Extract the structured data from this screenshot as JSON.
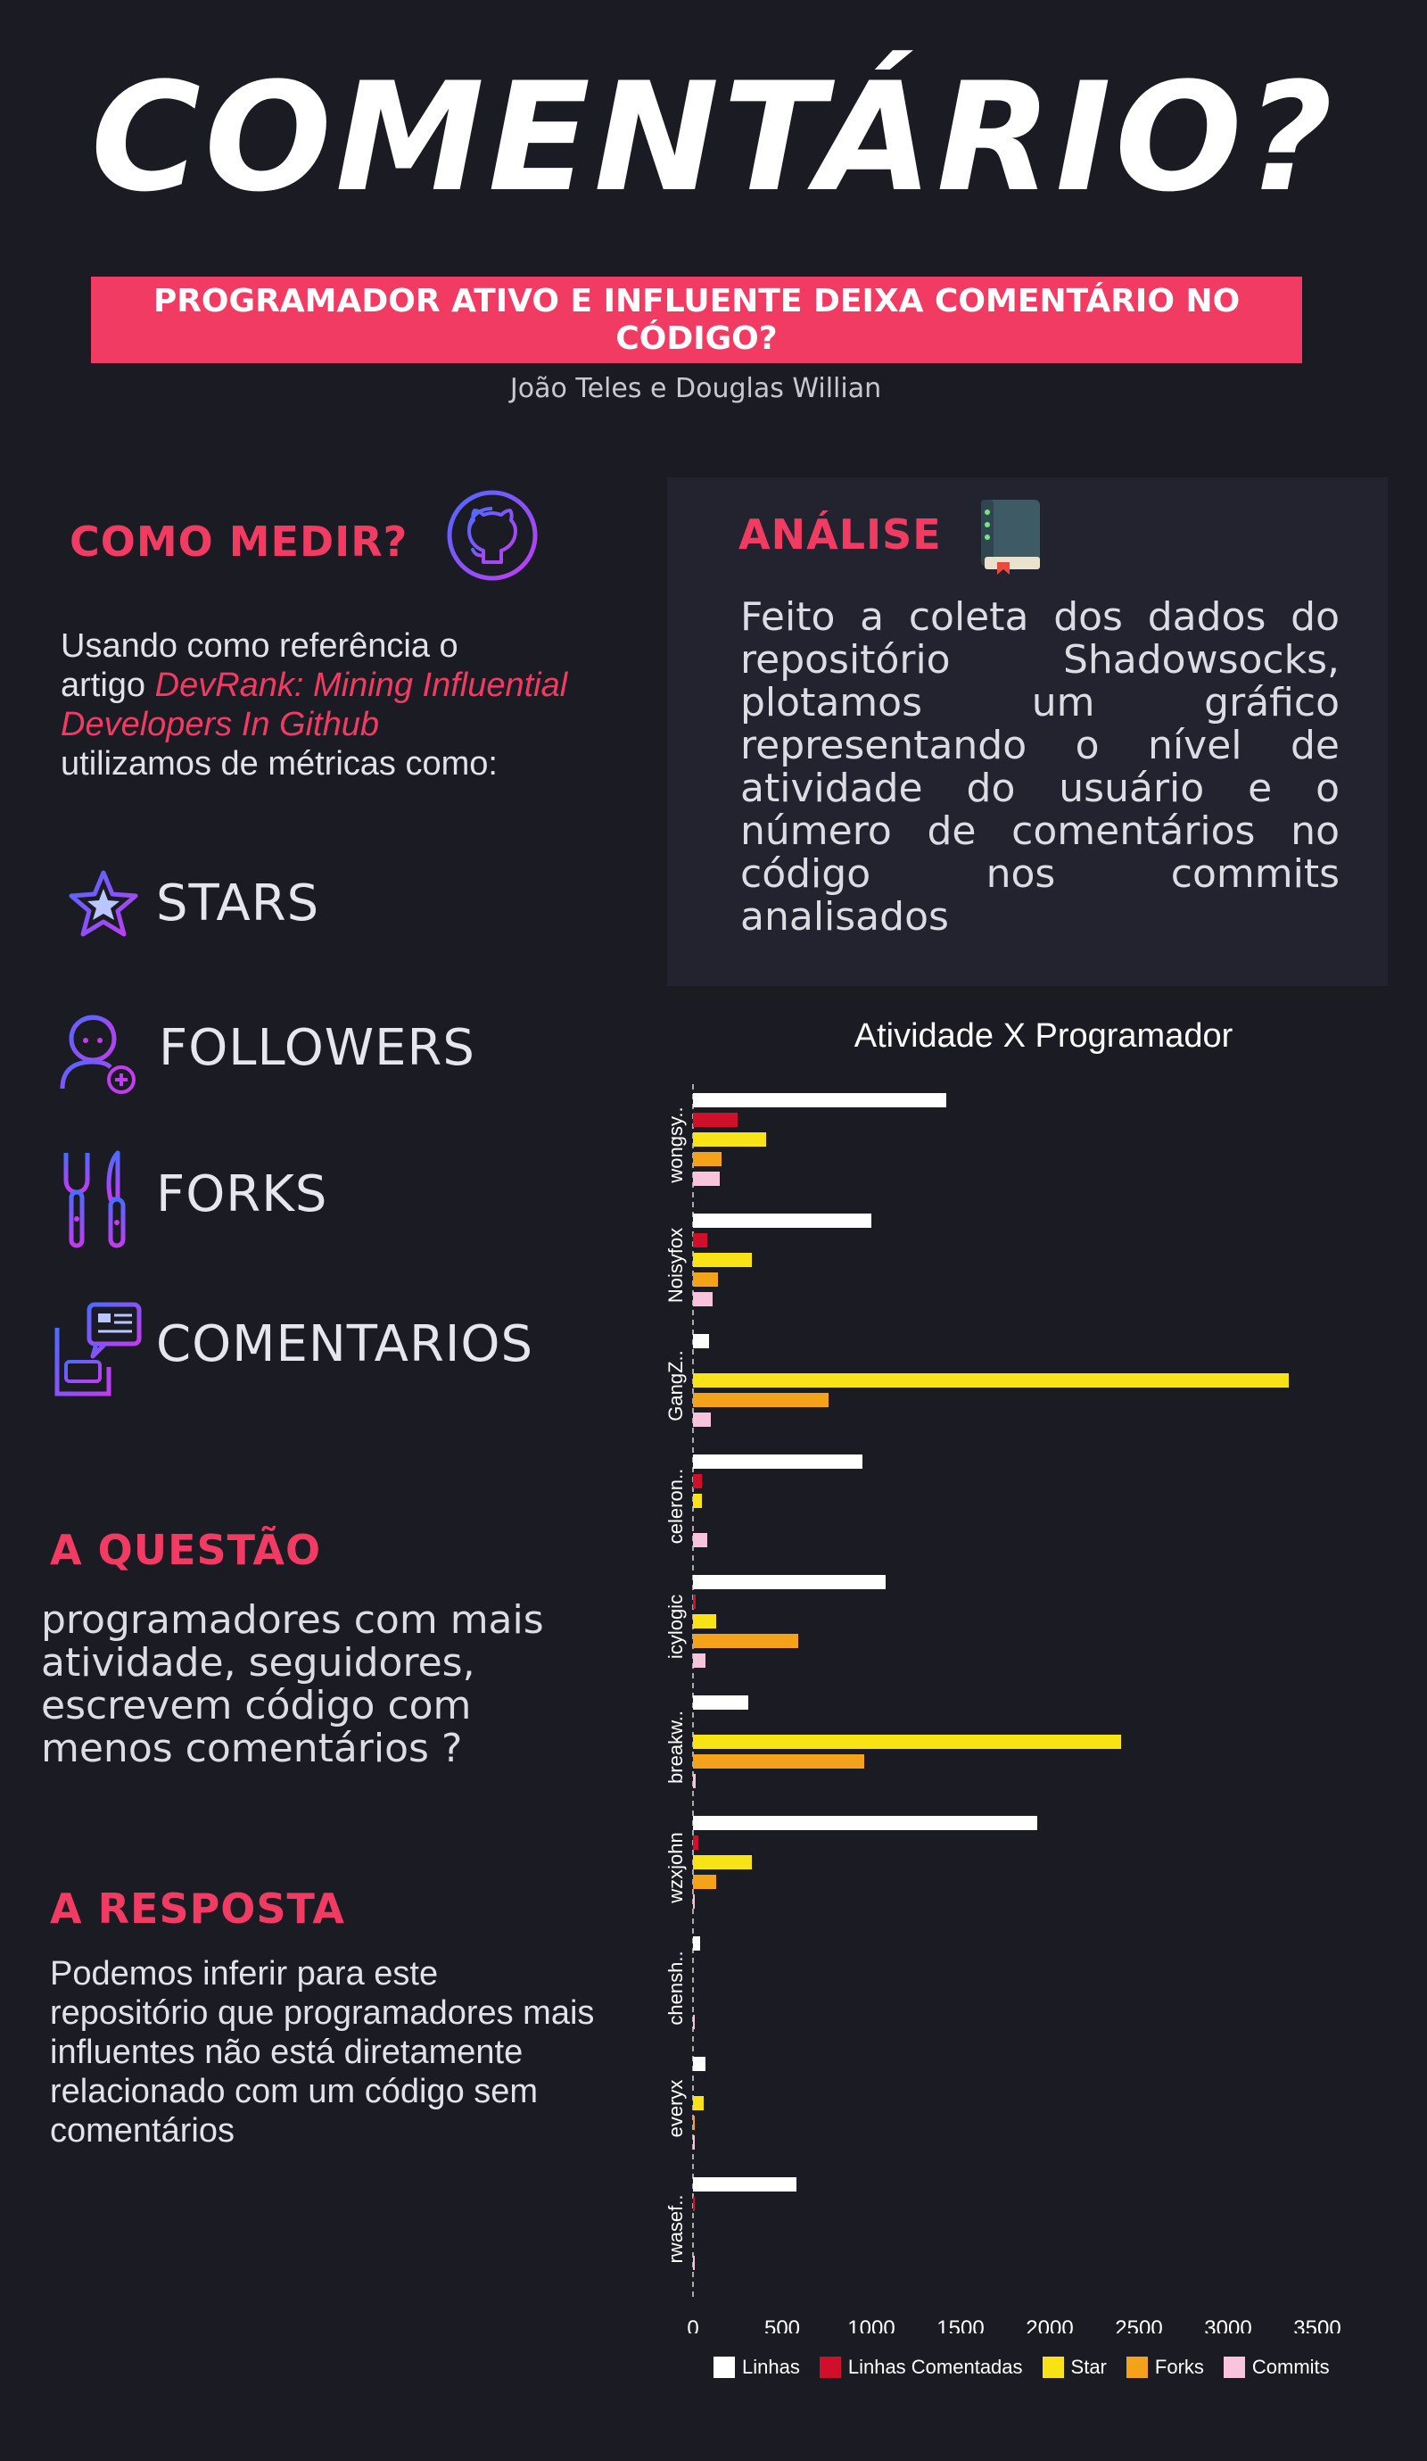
{
  "title": "COMENTÁRIO?",
  "subtitle": "PROGRAMADOR ATIVO E INFLUENTE DEIXA COMENTÁRIO NO CÓDIGO?",
  "authors": "João Teles e Douglas Willian",
  "como_medir": {
    "heading": "COMO MEDIR?",
    "icon": "github-icon",
    "intro_1": "Usando como referência o",
    "intro_2": "artigo ",
    "article": "DevRank: Mining Influential Developers In Github",
    "intro_3": "utilizamos de métricas como:"
  },
  "metrics": [
    {
      "label": "STARS",
      "icon": "star-icon"
    },
    {
      "label": "FOLLOWERS",
      "icon": "follower-icon"
    },
    {
      "label": "FORKS",
      "icon": "fork-knife-icon"
    },
    {
      "label": "COMENTARIOS",
      "icon": "comment-document-icon"
    }
  ],
  "questao": {
    "heading": "A QUESTÃO",
    "text": "programadores com mais atividade, seguidores, escrevem código com menos comentários ?"
  },
  "resposta": {
    "heading": "A RESPOSTA",
    "text": "Podemos inferir para este repositório que programadores mais influentes não está diretamente relacionado com um código sem comentários"
  },
  "analise": {
    "heading": "ANÁLISE",
    "icon": "book-icon",
    "text": "Feito a coleta dos dados do repositório Shadowsocks, plotamos um gráfico representando o nível de atividade do usuário e o número de comentários no código nos commits analisados"
  },
  "colors": {
    "accent": "#f23b62",
    "background": "#1b1b24",
    "panel": "#23232f"
  },
  "chart_data": {
    "type": "bar",
    "orientation": "horizontal",
    "title": "Atividade X Programador",
    "xlim": [
      0,
      3500
    ],
    "xticks": [
      "0",
      "500",
      "1000",
      "1500",
      "2000",
      "2500",
      "3000",
      "3500"
    ],
    "categories": [
      "wongsy..",
      "Noisyfox",
      "GangZ..",
      "celeron..",
      "icylogic",
      "breakw..",
      "wzxjohn",
      "chensh..",
      "everyx",
      "rwasef.."
    ],
    "series": [
      {
        "name": "Linhas",
        "color": "#ffffff",
        "values": [
          1420,
          1000,
          90,
          950,
          1080,
          310,
          1930,
          40,
          70,
          580
        ]
      },
      {
        "name": "Linhas Comentadas",
        "color": "#d0102a",
        "values": [
          250,
          80,
          0,
          50,
          15,
          0,
          30,
          0,
          0,
          10
        ]
      },
      {
        "name": "Star",
        "color": "#f7e316",
        "values": [
          410,
          330,
          3340,
          50,
          130,
          2400,
          330,
          0,
          60,
          0
        ]
      },
      {
        "name": "Forks",
        "color": "#f5a21b",
        "values": [
          160,
          140,
          760,
          0,
          590,
          960,
          130,
          0,
          10,
          0
        ]
      },
      {
        "name": "Commits",
        "color": "#f9c3dc",
        "values": [
          150,
          110,
          100,
          80,
          70,
          15,
          10,
          5,
          5,
          5
        ]
      }
    ]
  }
}
